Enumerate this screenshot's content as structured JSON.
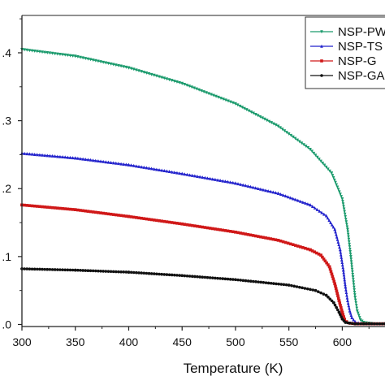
{
  "chart_data": {
    "type": "line",
    "title": "",
    "xlabel": "Temperature (K)",
    "ylabel": "",
    "xlim": [
      300,
      640
    ],
    "ylim": [
      -0.003,
      0.455
    ],
    "grid": false,
    "legend_position": "top-right",
    "x_ticks": [
      300,
      350,
      400,
      450,
      500,
      550,
      600
    ],
    "x_tick_labels": [
      "300",
      "350",
      "400",
      "450",
      "500",
      "550",
      "600"
    ],
    "y_ticks": [
      0.0,
      0.1,
      0.2,
      0.3,
      0.4
    ],
    "y_tick_labels": [
      ".0",
      ".1",
      ".2",
      ".3",
      ".4"
    ],
    "series": [
      {
        "name": "NSP-PW",
        "color": "#1a9a6c",
        "marker": "triangle-down",
        "x": [
          300,
          350,
          400,
          450,
          500,
          540,
          570,
          590,
          600,
          605,
          608,
          610,
          612,
          614,
          617,
          620,
          625,
          630,
          640
        ],
        "y": [
          0.405,
          0.395,
          0.378,
          0.355,
          0.325,
          0.292,
          0.258,
          0.223,
          0.185,
          0.14,
          0.1,
          0.07,
          0.04,
          0.02,
          0.007,
          0.003,
          0.002,
          0.001,
          0.001
        ]
      },
      {
        "name": "NSP-TS",
        "color": "#2222cc",
        "marker": "triangle-up",
        "x": [
          300,
          350,
          400,
          450,
          500,
          540,
          570,
          585,
          593,
          598,
          601,
          603,
          605,
          607,
          609,
          612,
          615,
          620,
          640
        ],
        "y": [
          0.252,
          0.245,
          0.235,
          0.222,
          0.208,
          0.193,
          0.176,
          0.16,
          0.14,
          0.11,
          0.08,
          0.055,
          0.035,
          0.02,
          0.01,
          0.004,
          0.002,
          0.001,
          0.001
        ]
      },
      {
        "name": "NSP-G",
        "color": "#d01818",
        "marker": "square",
        "x": [
          300,
          350,
          400,
          450,
          500,
          540,
          570,
          580,
          588,
          593,
          597,
          600,
          602,
          604,
          607,
          612,
          620,
          640
        ],
        "y": [
          0.176,
          0.169,
          0.159,
          0.148,
          0.136,
          0.124,
          0.11,
          0.102,
          0.085,
          0.06,
          0.035,
          0.018,
          0.008,
          0.004,
          0.002,
          0.001,
          0.001,
          0.001
        ]
      },
      {
        "name": "NSP-GA",
        "color": "#111111",
        "marker": "circle",
        "x": [
          300,
          350,
          400,
          450,
          500,
          550,
          575,
          585,
          592,
          597,
          600,
          603,
          607,
          612,
          620,
          640
        ],
        "y": [
          0.082,
          0.08,
          0.077,
          0.072,
          0.066,
          0.058,
          0.05,
          0.043,
          0.032,
          0.018,
          0.008,
          0.003,
          0.002,
          0.001,
          0.001,
          0.001
        ]
      }
    ]
  }
}
